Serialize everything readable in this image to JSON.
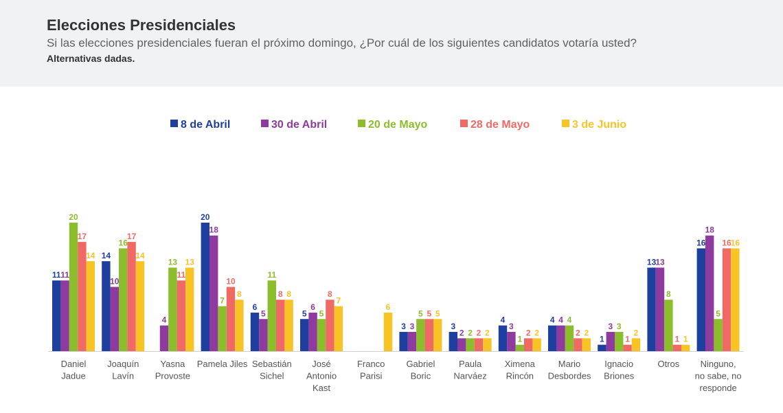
{
  "header": {
    "title": "Elecciones Presidenciales",
    "subtitle": "Si las elecciones presidenciales fueran el próximo domingo, ¿Por cuál de los siguientes candidatos votaría usted?",
    "note": "Alternativas dadas."
  },
  "chart_data": {
    "type": "bar",
    "title": "",
    "xlabel": "",
    "ylabel": "",
    "ylim": [
      0,
      20
    ],
    "grid": false,
    "legend_position": "top-center",
    "categories": [
      [
        "Daniel",
        "Jadue"
      ],
      [
        "Joaquín",
        "Lavín"
      ],
      [
        "Yasna",
        "Provoste"
      ],
      [
        "Pamela Jiles"
      ],
      [
        "Sebastián",
        "Sichel"
      ],
      [
        "José",
        "Antonio",
        "Kast"
      ],
      [
        "Franco",
        "Parisi"
      ],
      [
        "Gabriel",
        "Boric"
      ],
      [
        "Paula",
        "Narváez"
      ],
      [
        "Ximena",
        "Rincón"
      ],
      [
        "Mario",
        "Desbordes"
      ],
      [
        "Ignacio",
        "Briones"
      ],
      [
        "Otros"
      ],
      [
        "Ninguno,",
        "no sabe, no",
        "responde"
      ]
    ],
    "series": [
      {
        "name": "8 de Abril",
        "color": "#1f3f9e",
        "values": [
          11,
          14,
          null,
          20,
          6,
          5,
          null,
          3,
          3,
          4,
          4,
          1,
          13,
          16
        ]
      },
      {
        "name": "30 de Abril",
        "color": "#8e3a9e",
        "values": [
          11,
          10,
          4,
          18,
          5,
          6,
          null,
          3,
          2,
          3,
          4,
          3,
          13,
          18
        ]
      },
      {
        "name": "20 de Mayo",
        "color": "#8cbd2c",
        "values": [
          20,
          16,
          13,
          7,
          11,
          5,
          null,
          5,
          2,
          1,
          4,
          3,
          8,
          5
        ]
      },
      {
        "name": "28 de Mayo",
        "color": "#ef6a64",
        "values": [
          17,
          17,
          11,
          10,
          8,
          8,
          null,
          5,
          2,
          2,
          2,
          1,
          1,
          16
        ]
      },
      {
        "name": "3 de Junio",
        "color": "#f7c325",
        "values": [
          14,
          14,
          13,
          8,
          8,
          7,
          6,
          5,
          2,
          2,
          2,
          2,
          1,
          16
        ]
      }
    ]
  }
}
